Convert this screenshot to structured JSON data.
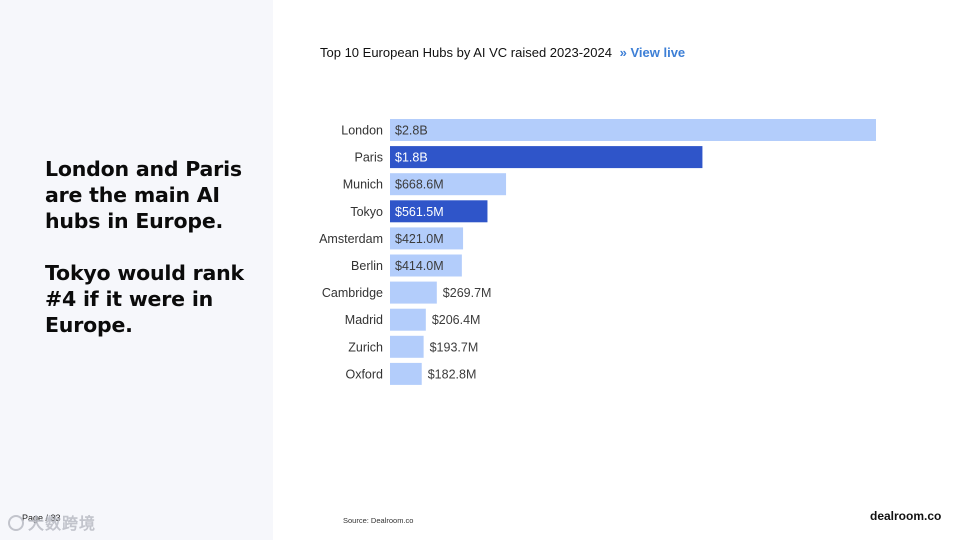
{
  "headline": {
    "line1": "London and Paris are the main AI hubs in Europe.",
    "line2": "Tokyo would rank #4 if it were in Europe."
  },
  "footer": {
    "page": "Page / 33",
    "watermark": "大数跨境",
    "source": "Source: Dealroom.co",
    "brand": "dealroom.co"
  },
  "header": {
    "title": "Top 10 European Hubs by AI VC raised 2023-2024",
    "arrow": "»",
    "view_live": "View live"
  },
  "colors": {
    "bar_light": "#b3cdfb",
    "bar_highlight": "#2f55c9",
    "label_dark": "#3c3c3c",
    "label_light": "#ffffff",
    "link": "#3d7fd6"
  },
  "chart_data": {
    "type": "bar",
    "orientation": "horizontal",
    "title": "Top 10 European Hubs by AI VC raised 2023-2024",
    "categories": [
      "London",
      "Paris",
      "Munich",
      "Tokyo",
      "Amsterdam",
      "Berlin",
      "Cambridge",
      "Madrid",
      "Zurich",
      "Oxford"
    ],
    "values": [
      2800,
      1800,
      668.6,
      561.5,
      421.0,
      414.0,
      269.7,
      206.4,
      193.7,
      182.8
    ],
    "value_labels": [
      "$2.8B",
      "$1.8B",
      "$668.6M",
      "$561.5M",
      "$421.0M",
      "$414.0M",
      "$269.7M",
      "$206.4M",
      "$193.7M",
      "$182.8M"
    ],
    "unit": "$M",
    "highlighted": [
      "Paris",
      "Tokyo"
    ],
    "xlim": [
      0,
      2800
    ],
    "grid": false,
    "legend": "none"
  }
}
